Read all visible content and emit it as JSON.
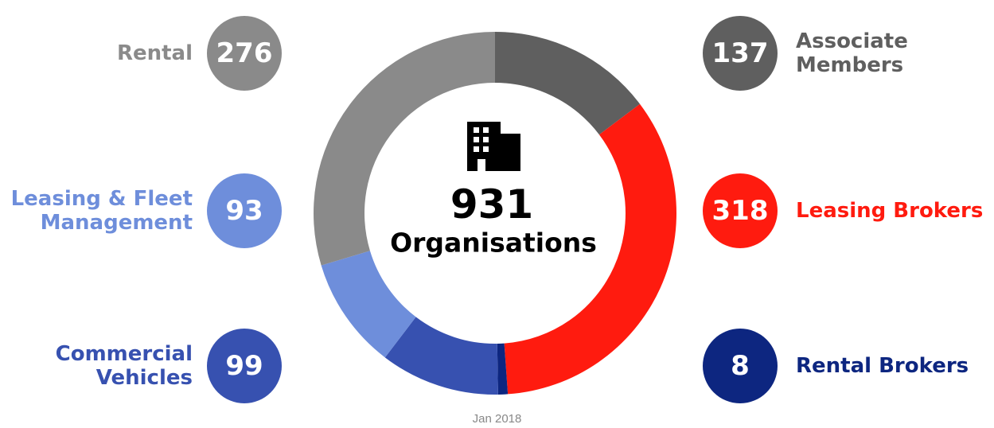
{
  "chart_data": {
    "type": "donut",
    "total": 931,
    "total_label": "Organisations",
    "categories": [
      "Associate Members",
      "Leasing Brokers",
      "Rental Brokers",
      "Commercial Vehicles",
      "Leasing & Fleet Management",
      "Rental"
    ],
    "values": [
      137,
      318,
      8,
      99,
      93,
      276
    ],
    "colors": [
      "#5f5f5f",
      "#ff1b0f",
      "#0d2680",
      "#3751b0",
      "#6e8edb",
      "#8a8a8a"
    ],
    "footnote": "Jan 2018"
  }
}
